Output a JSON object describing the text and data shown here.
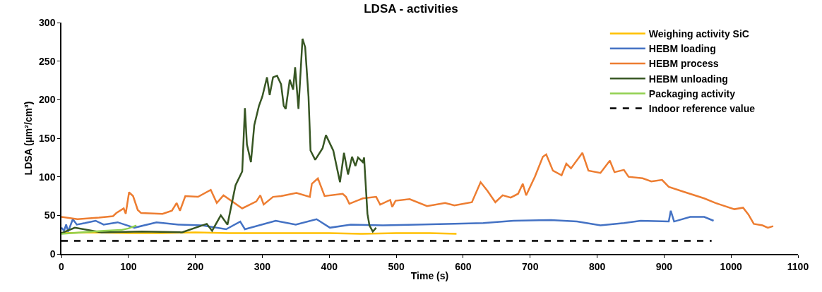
{
  "chart_data": {
    "type": "line",
    "title": "LDSA - activities",
    "xlabel": "Time (s)",
    "ylabel": "LDSA (µm²/cm³)",
    "xlim": [
      0,
      1100
    ],
    "xticks": [
      0,
      100,
      200,
      300,
      400,
      500,
      600,
      700,
      800,
      900,
      1000,
      1100
    ],
    "ylim": [
      0,
      300
    ],
    "yticks": [
      0,
      50,
      100,
      150,
      200,
      250,
      300
    ],
    "grid": false,
    "legend": "top right",
    "series": [
      {
        "name": "Weighing activity SiC",
        "color": "#ffc000",
        "x": [
          0,
          50,
          100,
          150,
          200,
          250,
          300,
          350,
          400,
          450,
          500,
          550,
          590
        ],
        "values": [
          27,
          28,
          27,
          27,
          28,
          27,
          27,
          27,
          27,
          26,
          27,
          27,
          26
        ]
      },
      {
        "name": "HEBM loading",
        "color": "#4472c4",
        "x": [
          0,
          4,
          7,
          10,
          17,
          23,
          35,
          51,
          63,
          84,
          109,
          142,
          175,
          210,
          246,
          267,
          274,
          320,
          350,
          381,
          401,
          432,
          480,
          530,
          587,
          630,
          675,
          731,
          770,
          805,
          840,
          865,
          907,
          910,
          915,
          939,
          960,
          974
        ],
        "values": [
          34,
          30,
          38,
          29,
          45,
          38,
          40,
          43,
          38,
          41,
          34,
          41,
          38,
          37,
          32,
          42,
          32,
          43,
          38,
          45,
          34,
          38,
          37,
          38,
          39,
          40,
          43,
          44,
          42,
          37,
          40,
          43,
          42,
          56,
          42,
          48,
          48,
          43
        ]
      },
      {
        "name": "HEBM process",
        "color": "#ed7d31",
        "x": [
          0,
          24,
          56,
          77,
          82,
          93,
          96,
          101,
          107,
          114,
          119,
          151,
          165,
          172,
          177,
          185,
          204,
          223,
          232,
          242,
          270,
          291,
          297,
          302,
          316,
          328,
          351,
          371,
          374,
          383,
          393,
          420,
          425,
          430,
          450,
          470,
          476,
          491,
          494,
          499,
          520,
          546,
          573,
          587,
          613,
          626,
          636,
          648,
          659,
          671,
          682,
          689,
          694,
          707,
          719,
          724,
          734,
          747,
          754,
          761,
          778,
          787,
          805,
          819,
          826,
          840,
          847,
          868,
          881,
          897,
          907,
          928,
          960,
          977,
          1005,
          1018,
          1026,
          1034,
          1047,
          1055,
          1063
        ],
        "values": [
          48,
          45,
          47,
          49,
          53,
          59,
          52,
          80,
          75,
          57,
          53,
          52,
          56,
          66,
          56,
          75,
          74,
          83,
          66,
          76,
          59,
          68,
          76,
          64,
          74,
          75,
          79,
          74,
          91,
          98,
          75,
          78,
          74,
          65,
          72,
          74,
          64,
          70,
          61,
          69,
          71,
          62,
          66,
          63,
          67,
          93,
          82,
          67,
          76,
          73,
          78,
          91,
          76,
          100,
          126,
          129,
          108,
          102,
          117,
          111,
          131,
          108,
          105,
          121,
          106,
          109,
          100,
          98,
          94,
          96,
          87,
          81,
          72,
          66,
          58,
          60,
          51,
          39,
          37,
          34,
          36
        ]
      },
      {
        "name": "HEBM unloading",
        "color": "#375623",
        "x": [
          0,
          20,
          60,
          120,
          180,
          217,
          225,
          238,
          248,
          260,
          270,
          274,
          277,
          283,
          288,
          295,
          300,
          307,
          311,
          316,
          322,
          328,
          332,
          335,
          341,
          346,
          349,
          354,
          360,
          364,
          369,
          372,
          379,
          390,
          395,
          406,
          416,
          422,
          428,
          434,
          439,
          443,
          450,
          452,
          457,
          460,
          465,
          470
        ],
        "values": [
          27,
          34,
          28,
          29,
          28,
          39,
          30,
          50,
          38,
          89,
          107,
          189,
          142,
          119,
          167,
          192,
          204,
          229,
          206,
          229,
          231,
          220,
          192,
          188,
          226,
          213,
          242,
          188,
          279,
          268,
          204,
          134,
          122,
          137,
          154,
          134,
          93,
          131,
          103,
          126,
          114,
          125,
          119,
          125,
          52,
          37,
          29,
          34
        ]
      },
      {
        "name": "Packaging activity",
        "color": "#92d050",
        "x": [
          0,
          30,
          63,
          89,
          100,
          112
        ],
        "values": [
          26,
          28,
          30,
          31,
          33,
          37
        ]
      },
      {
        "name": "Indoor reference value",
        "color": "#000000",
        "line_style": "dashed",
        "x": [
          0,
          971
        ],
        "values": [
          17,
          17
        ]
      }
    ]
  }
}
